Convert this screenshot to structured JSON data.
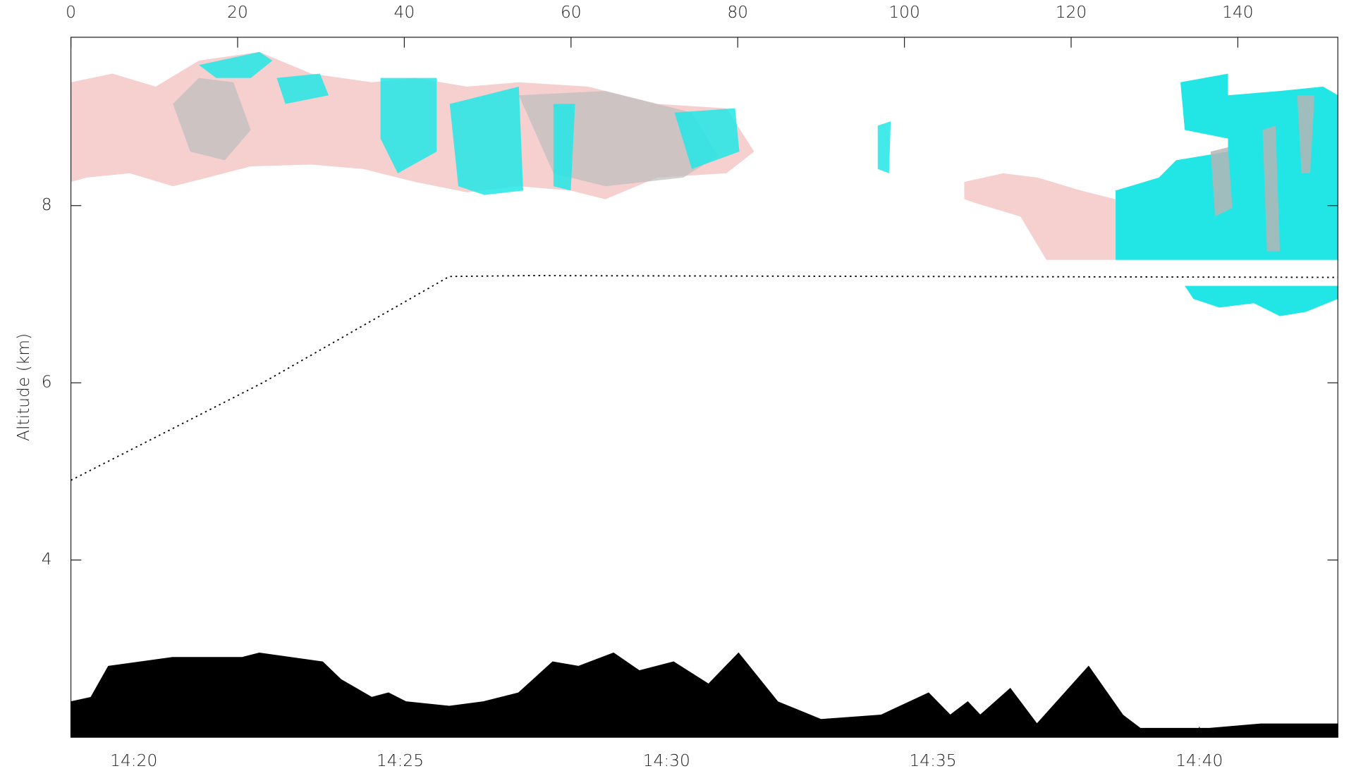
{
  "chart_data": {
    "type": "line",
    "y_label": "Altitude (km)",
    "xlim": [
      0,
      152
    ],
    "xticks": [
      0,
      20,
      40,
      60,
      80,
      100,
      120,
      140
    ],
    "ylim": [
      2,
      9.9
    ],
    "yticks": [
      4,
      6,
      8
    ],
    "time_lim": [
      18.82,
      42.6
    ],
    "time_ticks": [
      {
        "value": 20,
        "label": "14:20"
      },
      {
        "value": 25,
        "label": "14:25"
      },
      {
        "value": 30,
        "label": "14:30"
      },
      {
        "value": 35,
        "label": "14:35"
      },
      {
        "value": 40,
        "label": "14:40"
      }
    ],
    "series": [
      {
        "name": "flight altitude",
        "color": "#000000",
        "style": "dotted",
        "x": [
          0,
          23,
          45.4,
          55,
          152
        ],
        "values": [
          4.9,
          6.0,
          7.2,
          7.21,
          7.19
        ]
      },
      {
        "name": "terrain",
        "color": "#000000",
        "style": "area",
        "x": [
          0,
          2.4,
          4.5,
          12.2,
          20.5,
          22.6,
          30.2,
          32.4,
          36.1,
          38.1,
          40.2,
          45.4,
          49.5,
          53.7,
          57.8,
          60.9,
          65.1,
          68.2,
          72.3,
          76.5,
          80.1,
          84.8,
          90.0,
          97.2,
          102.9,
          105.5,
          107.6,
          109.1,
          112.7,
          115.9,
          122.1,
          126.2,
          128.3,
          136.6,
          142.8,
          152
        ],
        "values": [
          2.4,
          2.45,
          2.8,
          2.9,
          2.9,
          2.95,
          2.85,
          2.65,
          2.45,
          2.5,
          2.4,
          2.35,
          2.4,
          2.5,
          2.85,
          2.8,
          2.95,
          2.75,
          2.85,
          2.6,
          2.95,
          2.4,
          2.2,
          2.25,
          2.5,
          2.25,
          2.4,
          2.25,
          2.55,
          2.15,
          2.8,
          2.25,
          2.1,
          2.1,
          2.15,
          2.15
        ]
      }
    ]
  }
}
